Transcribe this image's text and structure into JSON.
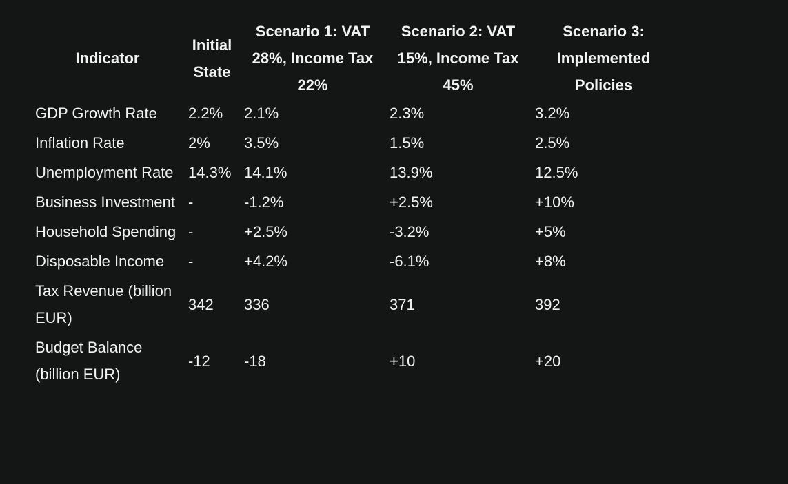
{
  "table": {
    "headers": [
      "Indicator",
      "Initial State",
      "Scenario 1: VAT 28%, Income Tax 22%",
      "Scenario 2: VAT 15%, Income Tax 45%",
      "Scenario 3: Implemented Policies"
    ],
    "rows": [
      {
        "indicator": "GDP Growth Rate",
        "initial": "2.2%",
        "s1": "2.1%",
        "s2": "2.3%",
        "s3": "3.2%"
      },
      {
        "indicator": "Inflation Rate",
        "initial": "2%",
        "s1": "3.5%",
        "s2": "1.5%",
        "s3": "2.5%"
      },
      {
        "indicator": "Unemployment Rate",
        "initial": "14.3%",
        "s1": "14.1%",
        "s2": "13.9%",
        "s3": "12.5%"
      },
      {
        "indicator": "Business Investment",
        "initial": "-",
        "s1": "-1.2%",
        "s2": "+2.5%",
        "s3": "+10%"
      },
      {
        "indicator": "Household Spending",
        "initial": "-",
        "s1": "+2.5%",
        "s2": "-3.2%",
        "s3": "+5%"
      },
      {
        "indicator": "Disposable Income",
        "initial": "-",
        "s1": "+4.2%",
        "s2": "-6.1%",
        "s3": "+8%"
      },
      {
        "indicator": "Tax Revenue (billion EUR)",
        "initial": "342",
        "s1": "336",
        "s2": "371",
        "s3": "392"
      },
      {
        "indicator": "Budget Balance (billion EUR)",
        "initial": "-12",
        "s1": "-18",
        "s2": "+10",
        "s3": "+20"
      }
    ]
  }
}
